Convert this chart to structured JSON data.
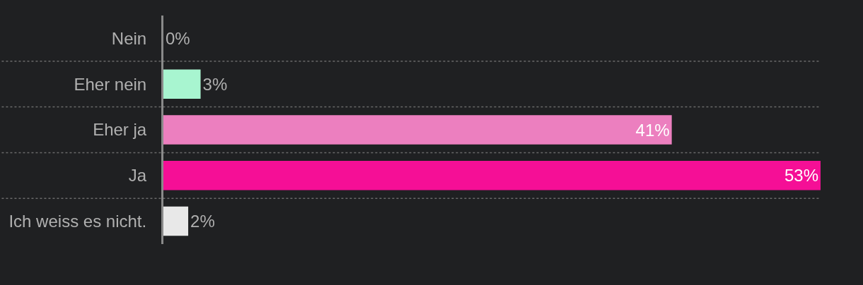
{
  "chart_data": {
    "type": "bar",
    "orientation": "horizontal",
    "categories": [
      "Nein",
      "Eher nein",
      "Eher ja",
      "Ja",
      "Ich weiss es nicht."
    ],
    "values": [
      0,
      3,
      41,
      53,
      2
    ],
    "colors": [
      "#a8f5d0",
      "#a8f5d0",
      "#ec7fbf",
      "#f50f96",
      "#e8e8e8"
    ],
    "value_labels": [
      "0%",
      "3%",
      "41%",
      "53%",
      "2%"
    ],
    "xlim": [
      0,
      53
    ],
    "tick_labels": "y",
    "grid": true
  }
}
